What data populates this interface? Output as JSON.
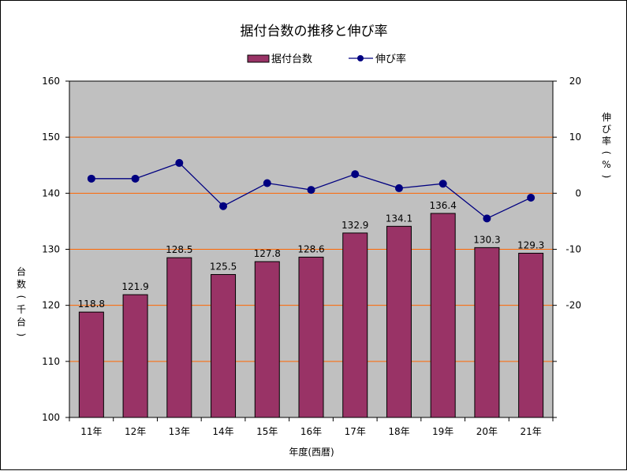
{
  "chart_data": {
    "type": "bar",
    "title": "据付台数の推移と伸び率",
    "xlabel": "年度(西暦)",
    "ylabel": "台数(千台)",
    "y2label": "伸び率(%)",
    "categories": [
      "11年",
      "12年",
      "13年",
      "14年",
      "15年",
      "16年",
      "17年",
      "18年",
      "19年",
      "20年",
      "21年"
    ],
    "series": [
      {
        "name": "据付台数",
        "type": "bar",
        "axis": "left",
        "values": [
          118.8,
          121.9,
          128.5,
          125.5,
          127.8,
          128.6,
          132.9,
          134.1,
          136.4,
          130.3,
          129.3
        ],
        "labels": [
          "118.8",
          "121.9",
          "128.5",
          "125.5",
          "127.8",
          "128.6",
          "132.9",
          "134.1",
          "136.4",
          "130.3",
          "129.3"
        ],
        "color": "#993366"
      },
      {
        "name": "伸び率",
        "type": "line",
        "axis": "right",
        "values": [
          2.6,
          2.6,
          5.4,
          -2.3,
          1.8,
          0.6,
          3.4,
          0.9,
          1.7,
          -4.5,
          -0.8
        ],
        "color": "#000080"
      }
    ],
    "ylim": [
      100,
      160
    ],
    "yticks": [
      "100",
      "110",
      "120",
      "130",
      "140",
      "150",
      "160"
    ],
    "y2lim": [
      -20,
      20
    ],
    "y2ticks": [
      "20",
      "10",
      "0",
      "-10",
      "-20"
    ],
    "legend": "top",
    "plot_background": "#c0c0c0",
    "gridline_color": "#ff6600"
  }
}
